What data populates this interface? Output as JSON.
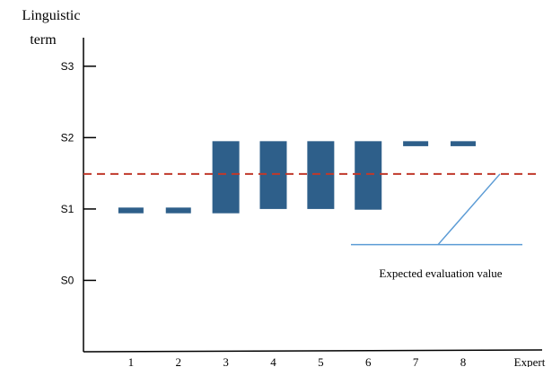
{
  "chart_data": {
    "type": "bar",
    "title": "",
    "ylabel_lines": [
      "Linguistic",
      "term"
    ],
    "xlabel": "Expert",
    "y_tick_labels": [
      "S0",
      "S1",
      "S2",
      "S3"
    ],
    "y_tick_values": [
      0,
      1,
      2,
      3
    ],
    "ylim": [
      -1,
      3.4
    ],
    "xlim": [
      0,
      9.4
    ],
    "categories": [
      "1",
      "2",
      "3",
      "4",
      "5",
      "6",
      "7",
      "8"
    ],
    "intervals": [
      {
        "x": 1,
        "low": 0.94,
        "high": 1.02
      },
      {
        "x": 2,
        "low": 0.94,
        "high": 1.02
      },
      {
        "x": 3,
        "low": 0.94,
        "high": 1.95
      },
      {
        "x": 4,
        "low": 1.0,
        "high": 1.95
      },
      {
        "x": 5,
        "low": 1.0,
        "high": 1.95
      },
      {
        "x": 6,
        "low": 0.99,
        "high": 1.95
      },
      {
        "x": 7,
        "low": 1.88,
        "high": 1.95
      },
      {
        "x": 8,
        "low": 1.88,
        "high": 1.95
      }
    ],
    "expected_value": 1.49,
    "annotation": "Expected evaluation value",
    "colors": {
      "bar": "#2e5f8a",
      "expected_line": "#c0392b",
      "annotation_line": "#5b9bd5",
      "axis": "#000000"
    }
  }
}
